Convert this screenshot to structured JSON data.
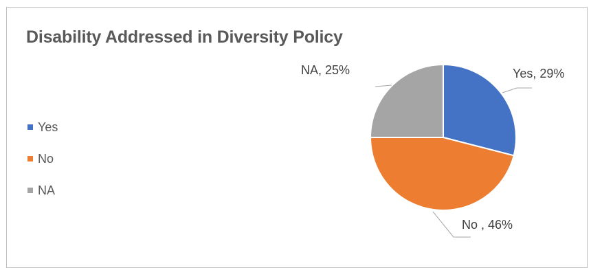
{
  "chart_data": {
    "type": "pie",
    "title": "Disability Addressed in Diversity Policy",
    "categories": [
      "Yes",
      "No",
      "NA"
    ],
    "values": [
      29,
      46,
      25
    ],
    "colors": [
      "#4472c4",
      "#ed7d31",
      "#a5a5a5"
    ],
    "data_labels": [
      "Yes, 29%",
      "No , 46%",
      "NA, 25%"
    ],
    "legend": {
      "position": "left",
      "entries": [
        "Yes",
        "No",
        "NA"
      ]
    },
    "start_angle": "12 o'clock",
    "direction": "clockwise"
  }
}
